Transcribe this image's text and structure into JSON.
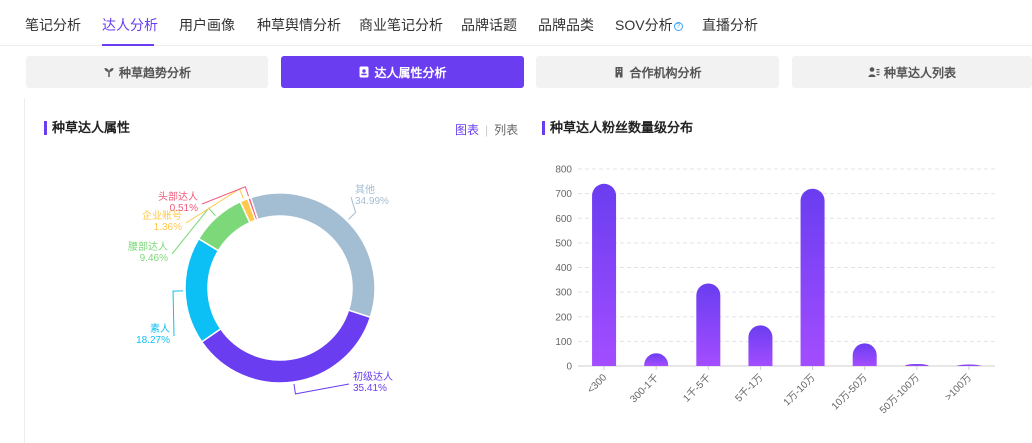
{
  "nav": {
    "tabs": [
      {
        "label": "笔记分析"
      },
      {
        "label": "达人分析"
      },
      {
        "label": "用户画像"
      },
      {
        "label": "种草舆情分析"
      },
      {
        "label": "商业笔记分析"
      },
      {
        "label": "品牌话题"
      },
      {
        "label": "品牌品类"
      },
      {
        "label": "SOV分析"
      },
      {
        "label": "直播分析"
      }
    ],
    "active_index": 1,
    "sov_help_icon": "question-circle-icon",
    "accent_color": "#6a3df0"
  },
  "subtabs": [
    {
      "label": "种草趋势分析",
      "icon": "sprout-icon"
    },
    {
      "label": "达人属性分析",
      "icon": "id-card-icon",
      "active": true
    },
    {
      "label": "合作机构分析",
      "icon": "building-icon"
    },
    {
      "label": "种草达人列表",
      "icon": "user-list-icon"
    }
  ],
  "left_panel": {
    "title": "种草达人属性",
    "view_toggle": {
      "chart_label": "图表",
      "list_label": "列表",
      "selected": "图表"
    }
  },
  "right_panel": {
    "title": "种草达人粉丝数量级分布"
  },
  "chart_data": [
    {
      "type": "pie",
      "variant": "donut",
      "title": "种草达人属性",
      "slices": [
        {
          "label": "其他",
          "value": 34.99,
          "display": "34.99%",
          "color": "#a3bdd3"
        },
        {
          "label": "初级达人",
          "value": 35.41,
          "display": "35.41%",
          "color": "#6a3df0"
        },
        {
          "label": "素人",
          "value": 18.27,
          "display": "18.27%",
          "color": "#0cbff5"
        },
        {
          "label": "腰部达人",
          "value": 9.46,
          "display": "9.46%",
          "color": "#7dd87a"
        },
        {
          "label": "企业账号",
          "value": 1.36,
          "display": "1.36%",
          "color": "#ffc84a"
        },
        {
          "label": "头部达人",
          "value": 0.51,
          "display": "0.51%",
          "color": "#f05b78"
        }
      ]
    },
    {
      "type": "bar",
      "title": "种草达人粉丝数量级分布",
      "categories": [
        "<300",
        "300-1千",
        "1千-5千",
        "5千-1万",
        "1万-10万",
        "10万-50万",
        "50万-100万",
        ">100万"
      ],
      "values": [
        740,
        52,
        335,
        165,
        720,
        92,
        8,
        6
      ],
      "ylim": [
        0,
        800
      ],
      "yticks": [
        0,
        100,
        200,
        300,
        400,
        500,
        600,
        700,
        800
      ],
      "grid": true,
      "gradient": {
        "top": "#6a3df0",
        "bottom": "#a34dff"
      }
    }
  ]
}
